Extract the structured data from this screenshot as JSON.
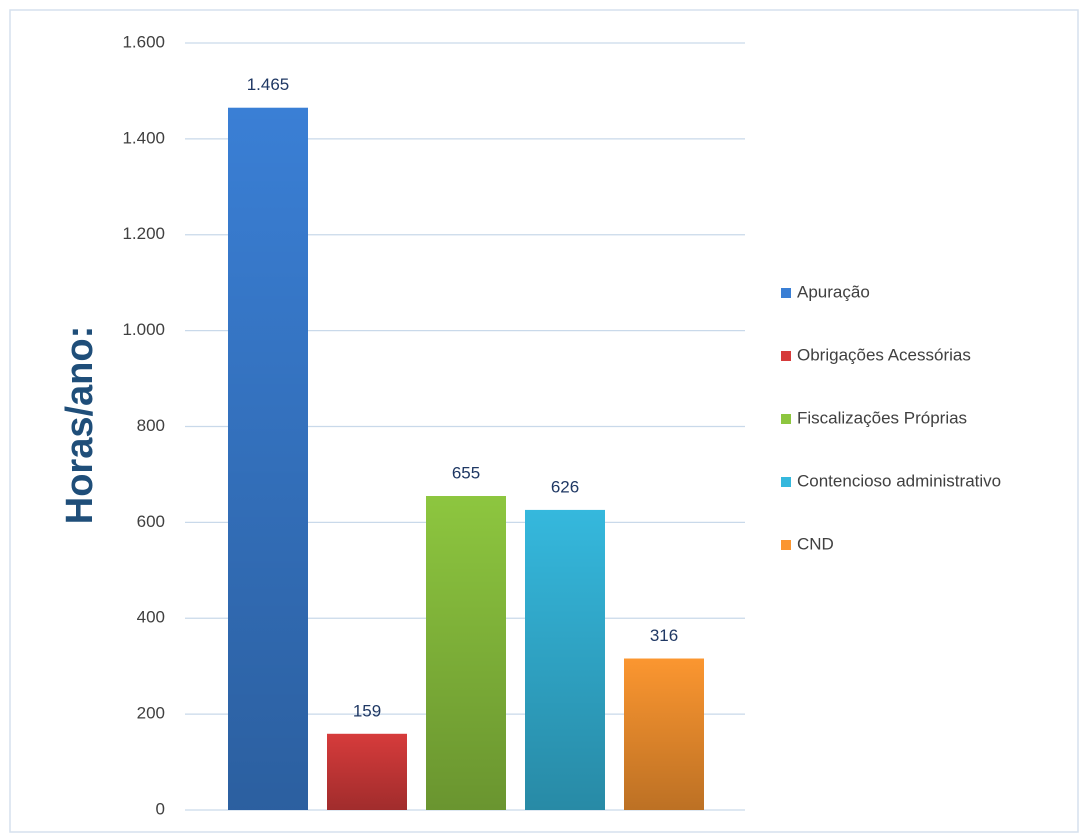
{
  "chart_data": {
    "type": "bar",
    "y_label": "Horas/ano:",
    "series": [
      {
        "name": "Apuração",
        "color": "#3a7fd5",
        "values": [
          1465
        ],
        "value_labels": [
          "1.465"
        ]
      },
      {
        "name": "Obrigações Acessórias",
        "color": "#d63b3b",
        "values": [
          159
        ]
      },
      {
        "name": "Fiscalizações Próprias",
        "color": "#8dc63f",
        "values": [
          655
        ]
      },
      {
        "name": "Contencioso administrativo",
        "color": "#35b8dd",
        "values": [
          626
        ]
      },
      {
        "name": "CND",
        "color": "#fb9630",
        "values": [
          316
        ]
      }
    ],
    "ylim": [
      0,
      1600
    ],
    "yticks": [
      0,
      200,
      400,
      600,
      800,
      {
        "value": 1000,
        "label": "1.000"
      },
      {
        "value": 1200,
        "label": "1.200"
      },
      {
        "value": 1400,
        "label": "1.400"
      },
      {
        "value": 1600,
        "label": "1.600"
      }
    ],
    "grid": true,
    "legend": "right"
  }
}
